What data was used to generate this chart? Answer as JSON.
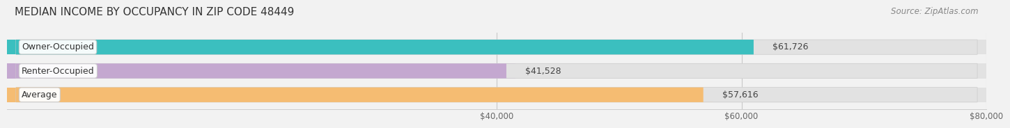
{
  "title": "MEDIAN INCOME BY OCCUPANCY IN ZIP CODE 48449",
  "source": "Source: ZipAtlas.com",
  "categories": [
    "Owner-Occupied",
    "Renter-Occupied",
    "Average"
  ],
  "values": [
    61726,
    41528,
    57616
  ],
  "labels": [
    "$61,726",
    "$41,528",
    "$57,616"
  ],
  "bar_colors": [
    "#3bbfbf",
    "#c4a8d0",
    "#f5bc72"
  ],
  "bar_edge_colors": [
    "#3bbfbf",
    "#c4a8d0",
    "#f5bc72"
  ],
  "xlim": [
    0,
    80000
  ],
  "xticks": [
    40000,
    60000,
    80000
  ],
  "xtick_labels": [
    "$40,000",
    "$60,000",
    "$80,000"
  ],
  "background_color": "#f2f2f2",
  "bar_bg_color": "#e2e2e2",
  "title_fontsize": 11,
  "source_fontsize": 8.5,
  "label_fontsize": 9,
  "bar_height": 0.62,
  "fig_width": 14.06,
  "fig_height": 1.96
}
